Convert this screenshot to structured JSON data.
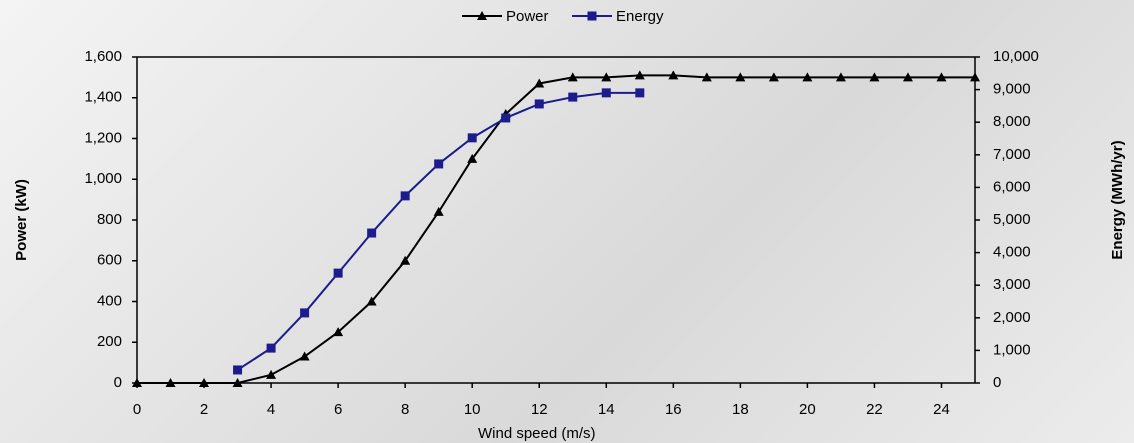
{
  "chart_data": {
    "type": "line",
    "x": [
      0,
      1,
      2,
      3,
      4,
      5,
      6,
      7,
      8,
      9,
      10,
      11,
      12,
      13,
      14,
      15,
      16,
      17,
      18,
      19,
      20,
      21,
      22,
      23,
      24,
      25
    ],
    "series": [
      {
        "name": "Power",
        "color": "#000000",
        "marker": "triangle",
        "values": [
          0,
          0,
          0,
          0,
          40,
          130,
          250,
          400,
          600,
          840,
          1100,
          1320,
          1470,
          1500,
          1500,
          1510,
          1510,
          1500,
          1500,
          1500,
          1500,
          1500,
          1500,
          1500,
          1500,
          1500
        ]
      },
      {
        "name": "Energy",
        "color": "#1c1c8c",
        "marker": "square",
        "axis": "y2",
        "values": [
          null,
          null,
          null,
          400,
          1070,
          2150,
          3370,
          4600,
          5740,
          6720,
          7520,
          8130,
          8560,
          8770,
          8900,
          8900,
          null,
          null,
          null,
          null,
          null,
          null,
          null,
          null,
          null,
          null
        ]
      }
    ],
    "xlim": [
      0,
      25
    ],
    "xticks": [
      0,
      2,
      4,
      6,
      8,
      10,
      12,
      14,
      16,
      18,
      20,
      22,
      24
    ],
    "ylim": [
      0,
      1600
    ],
    "yticks": [
      0,
      200,
      400,
      600,
      800,
      {
        "value": 1000,
        "label": "1,000"
      },
      {
        "value": 1200,
        "label": "1,200"
      },
      {
        "value": 1400,
        "label": "1,400"
      },
      {
        "value": 1600,
        "label": "1,600"
      }
    ],
    "y2lim": [
      0,
      10000
    ],
    "y2ticks": [
      0,
      {
        "value": 1000,
        "label": "1,000"
      },
      {
        "value": 2000,
        "label": "2,000"
      },
      {
        "value": 3000,
        "label": "3,000"
      },
      {
        "value": 4000,
        "label": "4,000"
      },
      {
        "value": 5000,
        "label": "5,000"
      },
      {
        "value": 6000,
        "label": "6,000"
      },
      {
        "value": 7000,
        "label": "7,000"
      },
      {
        "value": 8000,
        "label": "8,000"
      },
      {
        "value": 9000,
        "label": "9,000"
      },
      {
        "value": 10000,
        "label": "10,000"
      }
    ],
    "xlabel": "Wind speed (m/s)",
    "ylabel": "Power (kW)",
    "y2label": "Energy (MWh/yr)",
    "legend": "top",
    "grid": false
  }
}
